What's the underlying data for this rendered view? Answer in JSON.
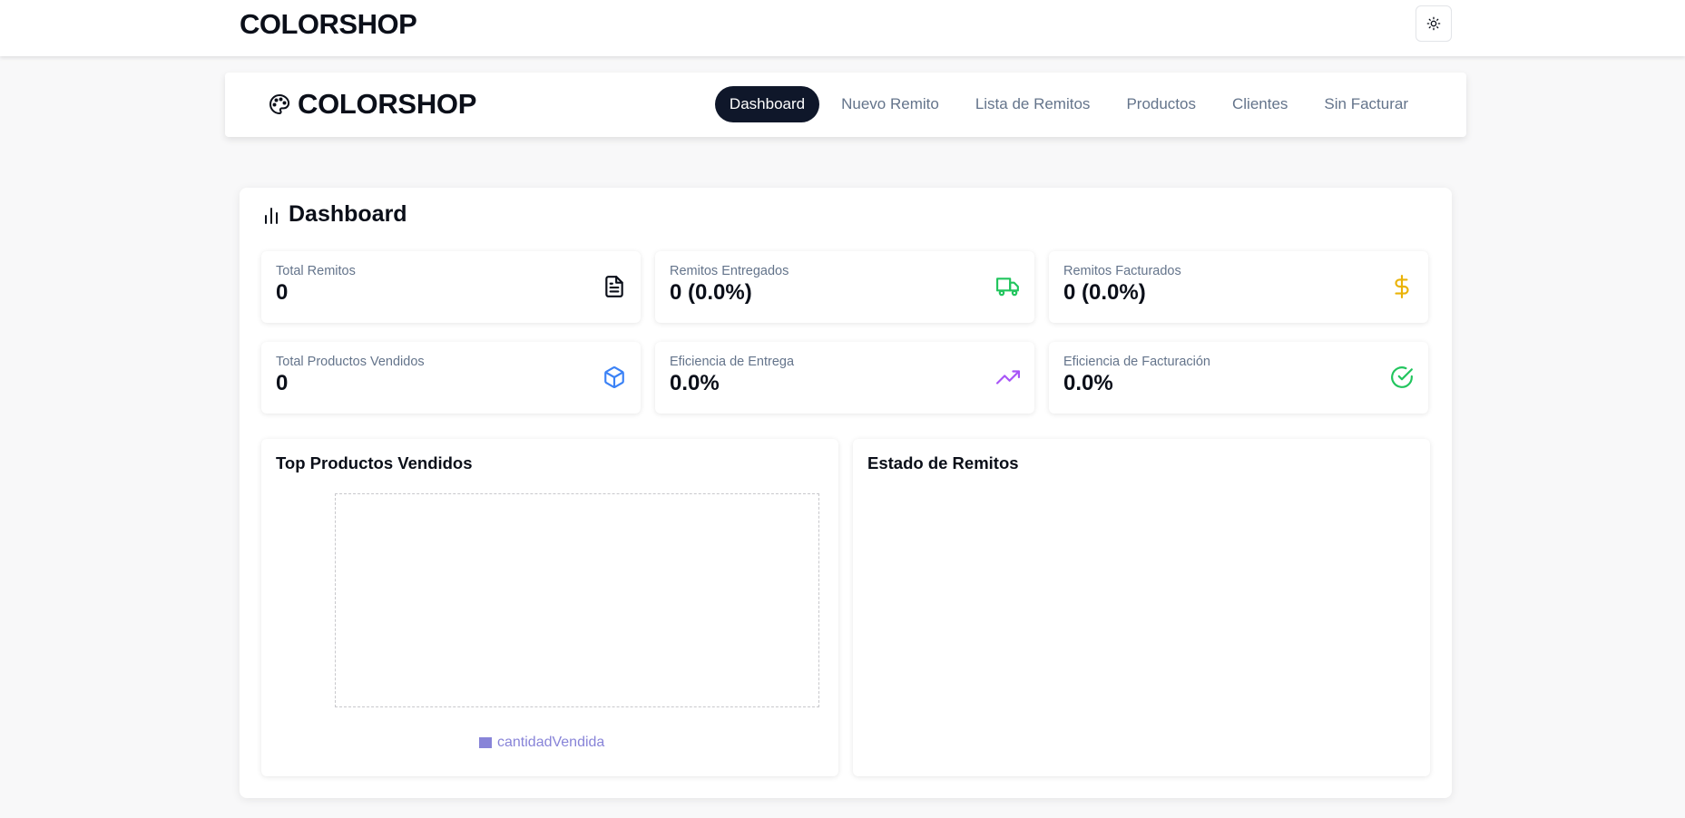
{
  "topbar": {
    "title": "COLORSHOP",
    "theme_toggle_icon": "sun-icon"
  },
  "navbar": {
    "brand": "COLORSHOP",
    "brand_icon": "palette-icon",
    "links": [
      "Dashboard",
      "Nuevo Remito",
      "Lista de Remitos",
      "Productos",
      "Clientes",
      "Sin Facturar"
    ],
    "active": "Dashboard",
    "active_bg": "#0f172a"
  },
  "dashboard": {
    "title": "Dashboard",
    "title_icon": "bar-chart-icon",
    "stats": [
      {
        "label": "Total Remitos",
        "value": "0",
        "icon": "file-text-icon",
        "color": "#0b0f19"
      },
      {
        "label": "Remitos Entregados",
        "value": "0 (0.0%)",
        "icon": "truck-icon",
        "color": "#22c55e"
      },
      {
        "label": "Remitos Facturados",
        "value": "0 (0.0%)",
        "icon": "dollar-icon",
        "color": "#eab308"
      },
      {
        "label": "Total Productos Vendidos",
        "value": "0",
        "icon": "package-icon",
        "color": "#3b82f6"
      },
      {
        "label": "Eficiencia de Entrega",
        "value": "0.0%",
        "icon": "trending-up-icon",
        "color": "#a855f7"
      },
      {
        "label": "Eficiencia de Facturación",
        "value": "0.0%",
        "icon": "check-circle-icon",
        "color": "#22c55e"
      }
    ],
    "top_products": {
      "title": "Top Productos Vendidos",
      "legend": "cantidadVendida",
      "legend_color": "#8884d8"
    },
    "remitos_status": {
      "title": "Estado de Remitos"
    }
  },
  "chart_data": {
    "type": "bar",
    "title": "Top Productos Vendidos",
    "categories": [],
    "series": [
      {
        "name": "cantidadVendida",
        "values": []
      }
    ]
  }
}
